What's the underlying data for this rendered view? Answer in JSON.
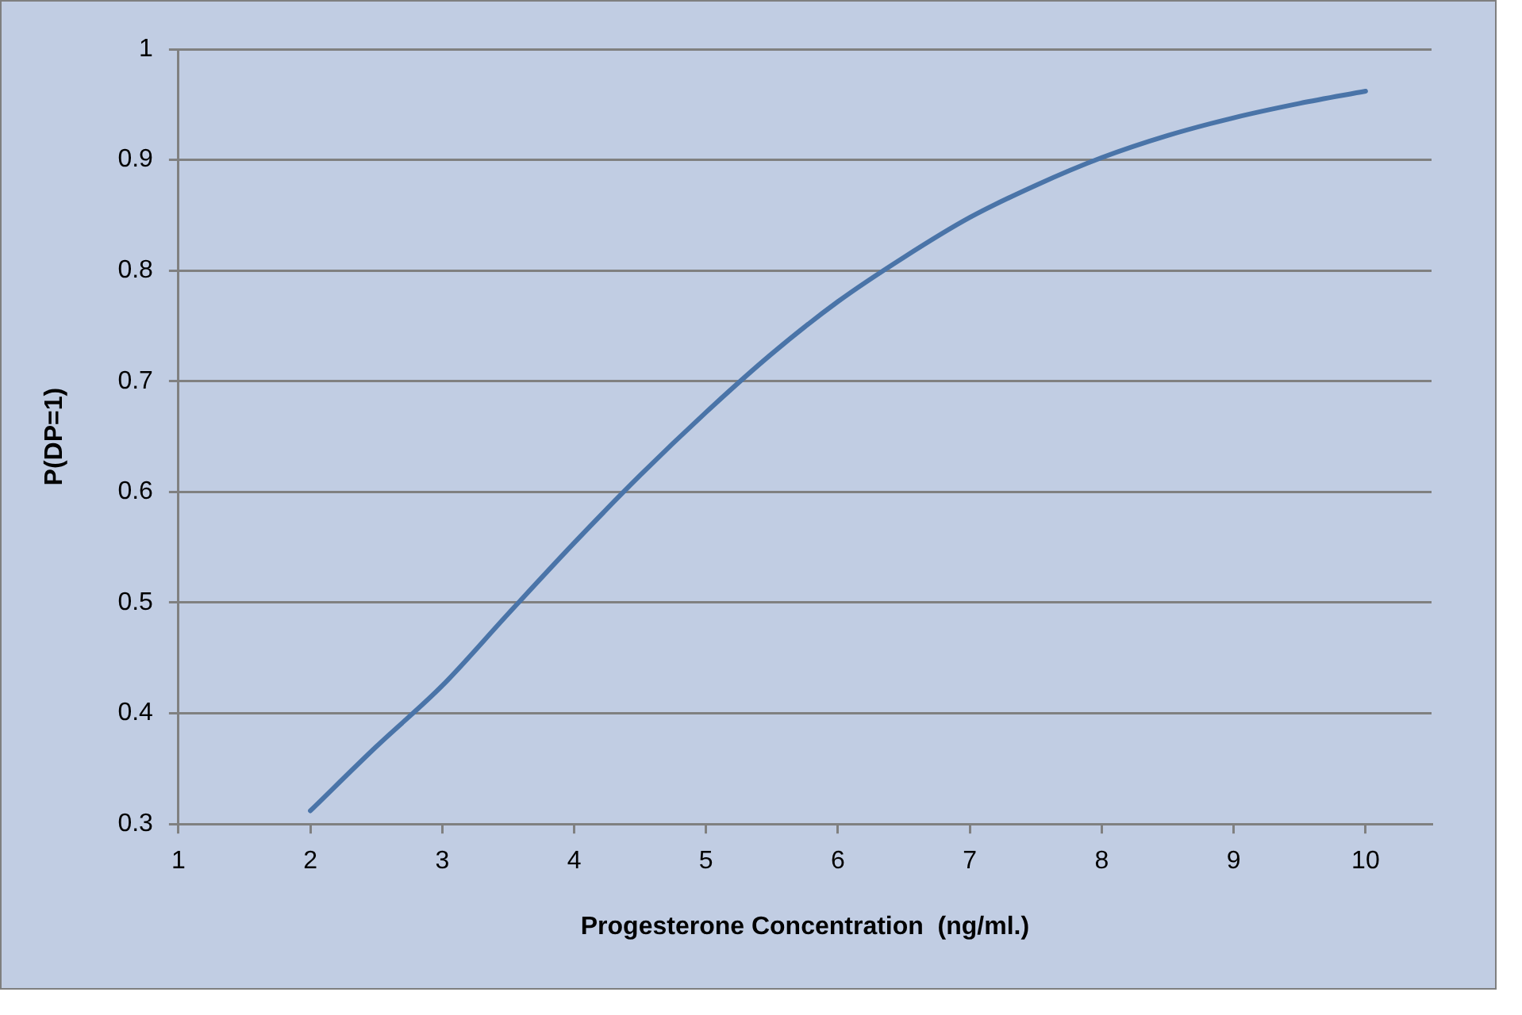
{
  "chart_data": {
    "type": "line",
    "xlabel": "Progesterone Concentration  (ng/ml.)",
    "ylabel": "P(DP=1)",
    "x": [
      2,
      2.5,
      3,
      3.5,
      4,
      4.5,
      5,
      5.5,
      6,
      6.5,
      7,
      7.5,
      8,
      8.5,
      9,
      9.5,
      10
    ],
    "series": [
      {
        "color": "#4a74a8",
        "values": [
          0.312,
          0.37,
          0.425,
          0.49,
          0.554,
          0.615,
          0.672,
          0.725,
          0.772,
          0.812,
          0.848,
          0.877,
          0.902,
          0.922,
          0.938,
          0.951,
          0.962
        ]
      }
    ],
    "xlim": [
      1,
      10.5
    ],
    "xticks": [
      1,
      2,
      3,
      4,
      5,
      6,
      7,
      8,
      9,
      10
    ],
    "ylim": [
      0.3,
      1
    ],
    "yticks": [
      0.3,
      0.4,
      0.5,
      0.6,
      0.7,
      0.8,
      0.9,
      1
    ],
    "grid": "y",
    "legend": false,
    "marker": "none",
    "line_style": "solid"
  }
}
